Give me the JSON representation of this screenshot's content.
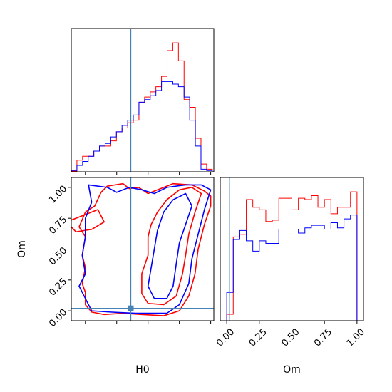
{
  "chart_data": {
    "type": "corner",
    "parameters": [
      "H0",
      "Om"
    ],
    "truth": {
      "H0": 0.345,
      "Om": 0.02
    },
    "colors": {
      "red": "#ff0000",
      "blue": "#0000ff",
      "truth": "#4682b4"
    },
    "panels": {
      "h0_hist": {
        "xlim": [
          0.155,
          0.61
        ],
        "x_ticks": [
          0.2,
          0.3,
          0.4,
          0.5,
          0.6
        ],
        "bin_edges": [
          0.155,
          0.173,
          0.191,
          0.209,
          0.227,
          0.245,
          0.263,
          0.281,
          0.299,
          0.317,
          0.335,
          0.353,
          0.371,
          0.389,
          0.407,
          0.425,
          0.443,
          0.461,
          0.479,
          0.497,
          0.515,
          0.533,
          0.551,
          0.569,
          0.587,
          0.605
        ],
        "series": [
          {
            "name": "",
            "color": "red",
            "values": [
              0.005,
              0.09,
              0.12,
              0.12,
              0.16,
              0.2,
              0.2,
              0.24,
              0.31,
              0.34,
              0.38,
              0.4,
              0.54,
              0.58,
              0.62,
              0.66,
              0.74,
              0.94,
              1.0,
              0.86,
              0.56,
              0.5,
              0.26,
              0.06,
              0.02
            ]
          },
          {
            "name": "",
            "color": "blue",
            "values": [
              0.01,
              0.05,
              0.08,
              0.12,
              0.16,
              0.2,
              0.22,
              0.27,
              0.31,
              0.36,
              0.4,
              0.44,
              0.54,
              0.56,
              0.59,
              0.63,
              0.7,
              0.7,
              0.68,
              0.66,
              0.58,
              0.4,
              0.2,
              0.02,
              0.01
            ]
          }
        ]
      },
      "om_hist": {
        "xlim": [
          -0.05,
          1.05
        ],
        "x_ticks": [
          0.0,
          0.25,
          0.5,
          0.75,
          1.0
        ],
        "tick_labels": [
          "0.00",
          "0.25",
          "0.50",
          "0.75",
          "1.00"
        ],
        "bin_edges": [
          0.0,
          0.05,
          0.1,
          0.15,
          0.2,
          0.25,
          0.3,
          0.35,
          0.4,
          0.45,
          0.5,
          0.55,
          0.6,
          0.65,
          0.7,
          0.75,
          0.8,
          0.85,
          0.9,
          0.95,
          1.0
        ],
        "series": [
          {
            "name": "",
            "color": "red",
            "values": [
              0.05,
              0.65,
              0.67,
              0.94,
              0.88,
              0.86,
              0.77,
              0.78,
              0.95,
              0.95,
              0.86,
              0.95,
              0.94,
              0.97,
              0.88,
              0.94,
              0.83,
              0.88,
              0.88,
              1.0
            ]
          },
          {
            "name": "",
            "color": "blue",
            "values": [
              0.22,
              0.63,
              0.7,
              0.62,
              0.54,
              0.62,
              0.6,
              0.6,
              0.71,
              0.71,
              0.71,
              0.68,
              0.72,
              0.74,
              0.74,
              0.71,
              0.76,
              0.72,
              0.79,
              0.82
            ]
          }
        ]
      },
      "joint": {
        "xlabel": "H0",
        "ylabel": "Om",
        "xlim": [
          0.155,
          0.61
        ],
        "ylim": [
          -0.08,
          1.08
        ],
        "x_ticks": [
          0.2,
          0.3,
          0.4,
          0.5,
          0.6
        ],
        "y_ticks": [
          0.0,
          0.25,
          0.5,
          0.75,
          1.0
        ],
        "y_tick_labels": [
          "0.00",
          "0.25",
          "0.50",
          "0.75",
          "1.00"
        ],
        "contours": [
          {
            "color": "red",
            "level": "outer",
            "points": [
              [
                0.27,
                1.01
              ],
              [
                0.32,
                1.03
              ],
              [
                0.34,
                0.99
              ],
              [
                0.37,
                1.0
              ],
              [
                0.4,
                0.95
              ],
              [
                0.44,
                0.99
              ],
              [
                0.48,
                1.03
              ],
              [
                0.54,
                1.02
              ],
              [
                0.58,
                0.97
              ],
              [
                0.6,
                0.93
              ],
              [
                0.6,
                0.85
              ],
              [
                0.58,
                0.7
              ],
              [
                0.56,
                0.5
              ],
              [
                0.55,
                0.3
              ],
              [
                0.53,
                0.12
              ],
              [
                0.5,
                0.0
              ],
              [
                0.45,
                -0.04
              ],
              [
                0.38,
                -0.03
              ],
              [
                0.32,
                -0.02
              ],
              [
                0.26,
                -0.03
              ],
              [
                0.22,
                -0.01
              ],
              [
                0.2,
                0.05
              ],
              [
                0.2,
                0.15
              ],
              [
                0.19,
                0.22
              ],
              [
                0.2,
                0.35
              ],
              [
                0.19,
                0.45
              ],
              [
                0.2,
                0.6
              ],
              [
                0.18,
                0.68
              ],
              [
                0.2,
                0.8
              ],
              [
                0.23,
                0.85
              ],
              [
                0.25,
                0.96
              ],
              [
                0.27,
                1.01
              ]
            ]
          },
          {
            "color": "red",
            "level": "inner",
            "points": [
              [
                0.41,
                0.7
              ],
              [
                0.43,
                0.8
              ],
              [
                0.46,
                0.9
              ],
              [
                0.5,
                0.98
              ],
              [
                0.54,
                1.0
              ],
              [
                0.57,
                0.95
              ],
              [
                0.55,
                0.8
              ],
              [
                0.53,
                0.62
              ],
              [
                0.52,
                0.45
              ],
              [
                0.51,
                0.3
              ],
              [
                0.49,
                0.12
              ],
              [
                0.45,
                0.05
              ],
              [
                0.4,
                0.06
              ],
              [
                0.38,
                0.14
              ],
              [
                0.38,
                0.3
              ],
              [
                0.4,
                0.45
              ],
              [
                0.4,
                0.6
              ],
              [
                0.41,
                0.7
              ]
            ]
          },
          {
            "color": "red",
            "level": "blob",
            "points": [
              [
                0.14,
                0.72
              ],
              [
                0.2,
                0.78
              ],
              [
                0.24,
                0.82
              ],
              [
                0.26,
                0.72
              ],
              [
                0.22,
                0.66
              ],
              [
                0.17,
                0.64
              ],
              [
                0.14,
                0.72
              ]
            ]
          },
          {
            "color": "blue",
            "level": "outer",
            "points": [
              [
                0.21,
                1.02
              ],
              [
                0.27,
                1.0
              ],
              [
                0.3,
                0.96
              ],
              [
                0.34,
                1.0
              ],
              [
                0.38,
                0.98
              ],
              [
                0.42,
                0.95
              ],
              [
                0.46,
                1.0
              ],
              [
                0.52,
                1.02
              ],
              [
                0.57,
                1.02
              ],
              [
                0.6,
                0.98
              ],
              [
                0.58,
                0.82
              ],
              [
                0.56,
                0.62
              ],
              [
                0.54,
                0.42
              ],
              [
                0.53,
                0.22
              ],
              [
                0.5,
                0.05
              ],
              [
                0.46,
                -0.02
              ],
              [
                0.36,
                -0.02
              ],
              [
                0.28,
                -0.01
              ],
              [
                0.22,
                0.0
              ],
              [
                0.2,
                0.1
              ],
              [
                0.18,
                0.2
              ],
              [
                0.2,
                0.3
              ],
              [
                0.19,
                0.45
              ],
              [
                0.2,
                0.6
              ],
              [
                0.2,
                0.75
              ],
              [
                0.22,
                0.88
              ],
              [
                0.21,
                1.02
              ]
            ]
          },
          {
            "color": "blue",
            "level": "inner",
            "points": [
              [
                0.43,
                0.65
              ],
              [
                0.45,
                0.8
              ],
              [
                0.48,
                0.9
              ],
              [
                0.52,
                0.95
              ],
              [
                0.54,
                0.85
              ],
              [
                0.52,
                0.7
              ],
              [
                0.5,
                0.55
              ],
              [
                0.49,
                0.38
              ],
              [
                0.48,
                0.2
              ],
              [
                0.46,
                0.1
              ],
              [
                0.42,
                0.1
              ],
              [
                0.4,
                0.2
              ],
              [
                0.41,
                0.35
              ],
              [
                0.42,
                0.5
              ],
              [
                0.43,
                0.65
              ]
            ]
          }
        ],
        "truth_marker": {
          "H0": 0.345,
          "Om": 0.02,
          "color": "#4682b4"
        }
      }
    }
  }
}
